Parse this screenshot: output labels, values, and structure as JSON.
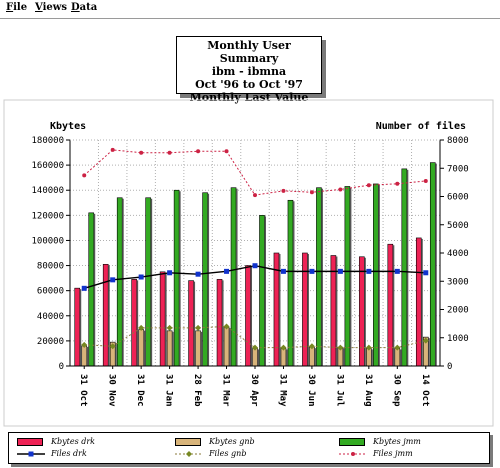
{
  "menu": {
    "items": [
      {
        "label": "File",
        "accel": "F",
        "rest": "ile"
      },
      {
        "label": "Views",
        "accel": "V",
        "rest": "iews"
      },
      {
        "label": "Data",
        "accel": "D",
        "rest": "ata"
      }
    ]
  },
  "title": {
    "line1": "Monthly User Summary",
    "line2": "ibm - ibmna",
    "line3": "Oct '96 to Oct '97",
    "line4": "Monthly Last Value"
  },
  "colors": {
    "drk_bar": "#ee2255",
    "gnb_bar": "#d8b47a",
    "jmm_bar": "#33aa22",
    "drk_line": "#000000",
    "drk_marker": "#1133cc",
    "gnb_line": "#8a7a3a",
    "gnb_marker": "#778822",
    "jmm_line": "#cc2244",
    "jmm_marker": "#cc2244"
  },
  "chart_data": {
    "type": "bar",
    "left_axis_label": "Kbytes",
    "right_axis_label": "Number of files",
    "left_ylim": [
      0,
      180000
    ],
    "right_ylim": [
      0,
      8000
    ],
    "left_ticks": [
      "0",
      "20000",
      "40000",
      "60000",
      "80000",
      "100000",
      "120000",
      "140000",
      "160000",
      "180000"
    ],
    "right_ticks": [
      "0",
      "1000",
      "2000",
      "3000",
      "4000",
      "5000",
      "6000",
      "7000",
      "8000"
    ],
    "grid": true,
    "legend_placement": "bottom",
    "categories": [
      "31 Oct",
      "30 Nov",
      "31 Dec",
      "31 Jan",
      "28 Feb",
      "31 Mar",
      "30 Apr",
      "31 May",
      "30 Jun",
      "31 Jul",
      "31 Aug",
      "30 Sep",
      "14 Oct"
    ],
    "bar_series": [
      {
        "name": "Kbytes drk",
        "values": [
          62000,
          81000,
          69000,
          75000,
          68000,
          69000,
          80000,
          90000,
          90000,
          88000,
          87000,
          97000,
          102000
        ]
      },
      {
        "name": "Kbytes gnb",
        "values": [
          16000,
          19000,
          29000,
          28000,
          28000,
          31000,
          14000,
          14000,
          15000,
          15000,
          14000,
          14000,
          23000
        ]
      },
      {
        "name": "Kbytes jmm",
        "values": [
          122000,
          134000,
          134000,
          140000,
          138000,
          142000,
          120000,
          132000,
          142000,
          143000,
          145000,
          157000,
          162000
        ]
      }
    ],
    "line_series": [
      {
        "name": "Files drk",
        "values": [
          2750,
          3050,
          3150,
          3300,
          3250,
          3350,
          3550,
          3350,
          3350,
          3350,
          3350,
          3350,
          3300
        ]
      },
      {
        "name": "Files gnb",
        "values": [
          750,
          700,
          1350,
          1350,
          1350,
          1400,
          650,
          650,
          700,
          650,
          650,
          650,
          900
        ]
      },
      {
        "name": "Files jmm",
        "values": [
          6750,
          7650,
          7550,
          7550,
          7600,
          7600,
          6050,
          6200,
          6150,
          6250,
          6400,
          6450,
          6550
        ]
      }
    ]
  }
}
